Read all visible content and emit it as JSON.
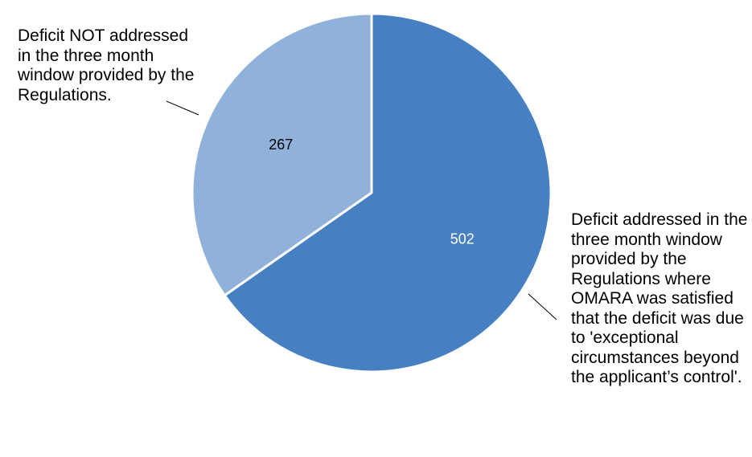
{
  "chart_data": {
    "type": "pie",
    "categories": [
      "Deficit NOT addressed in the three month window provided by the Regulations.",
      "Deficit addressed in the three month window provided by the Regulations where OMARA was satisfied that the deficit was due to 'exceptional circumstances beyond the applicant’s control'."
    ],
    "values": [
      267,
      502
    ],
    "colors": [
      "#8FB1DA",
      "#4680C2"
    ],
    "value_label_colors": [
      "#000000",
      "#ffffff"
    ],
    "title": "",
    "legend": "none",
    "start_angle_deg": 0,
    "direction": "counterclockwise"
  }
}
